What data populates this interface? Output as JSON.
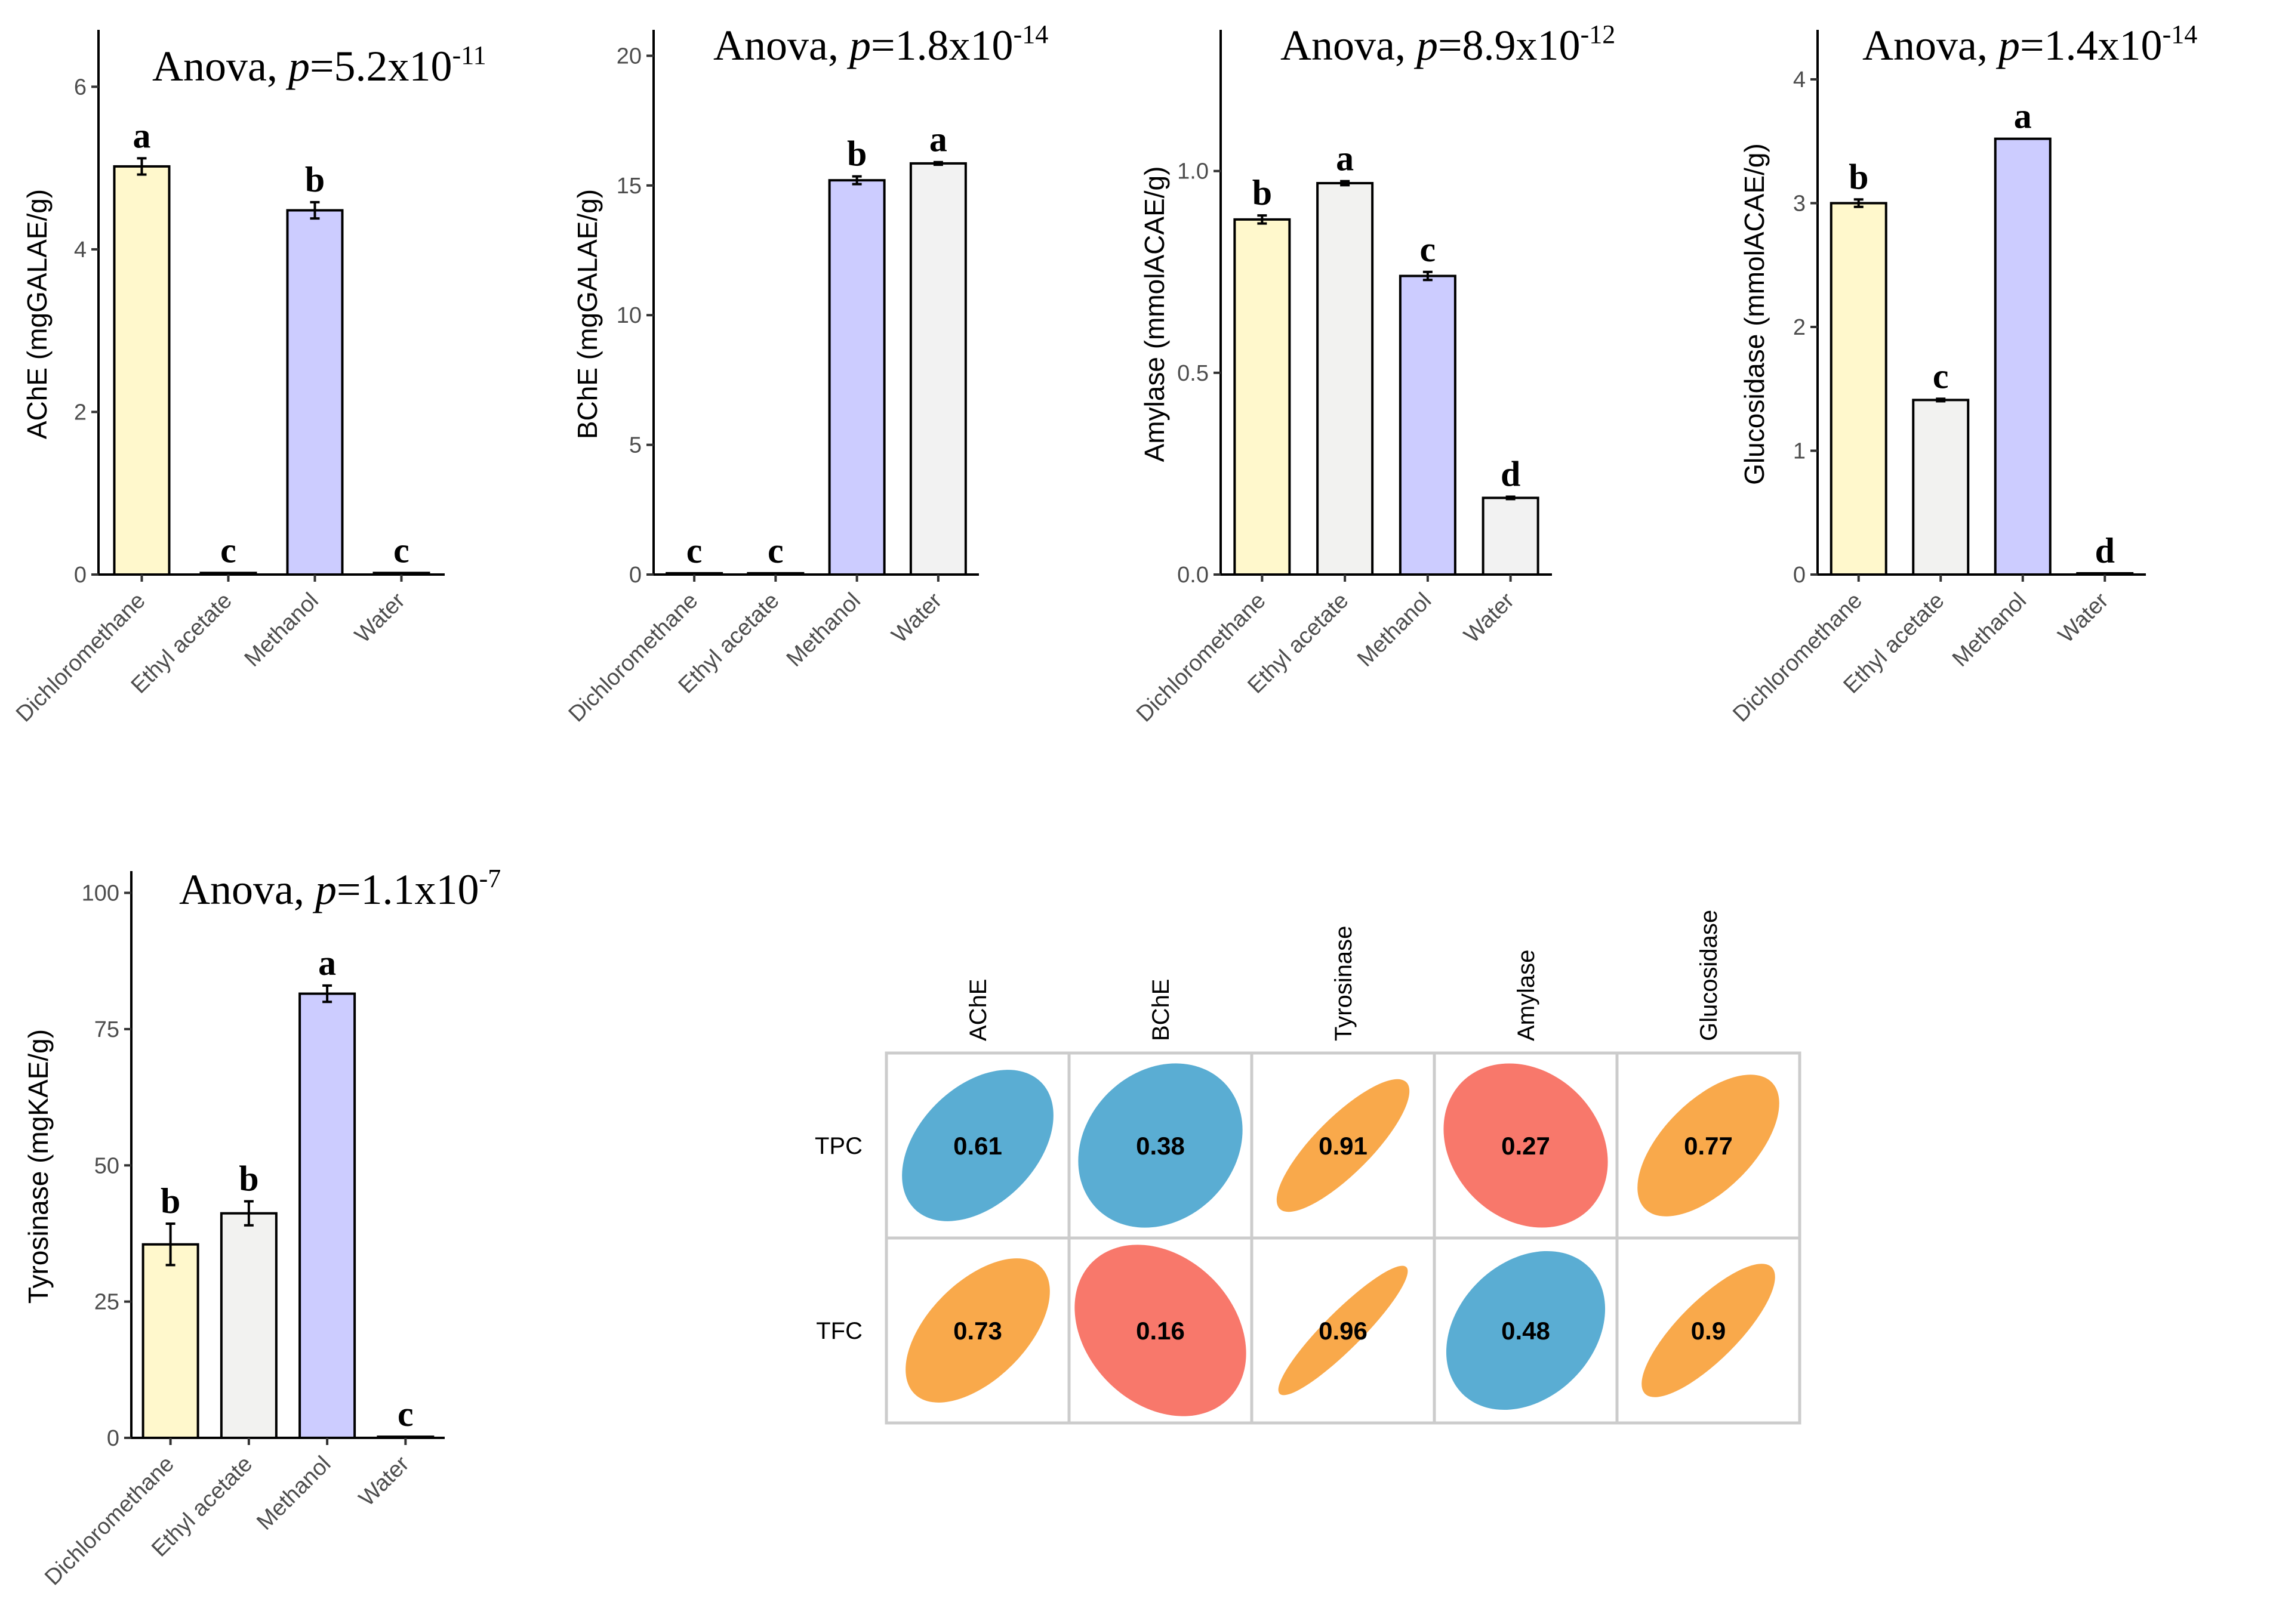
{
  "colors": {
    "bar_fills": [
      "#fff8cc",
      "#f2f2f0",
      "#ccccff",
      "#f2f2f2"
    ],
    "corr_positive_strong": "#f9a94b",
    "corr_mid": "#5aadd3",
    "corr_weak": "#f8786b"
  },
  "chart_data": [
    {
      "type": "bar",
      "title": "Anova, p=5.2x10-11",
      "anova": {
        "prefix": "Anova, ",
        "p": "p",
        "value": "=5.2x10",
        "exp": "-11"
      },
      "categories": [
        "Dichloromethane",
        "Ethyl acetate",
        "Methanol",
        "Water"
      ],
      "values": [
        5.02,
        0.02,
        4.48,
        0.02
      ],
      "errors": [
        0.1,
        0,
        0.1,
        0
      ],
      "letters": [
        "a",
        "c",
        "b",
        "c"
      ],
      "ylabel": "AChE (mgGALAE/g)",
      "ylim": [
        0,
        6.7
      ],
      "yticks": [
        0,
        2,
        4,
        6
      ],
      "ytick_labels": [
        "0",
        "2",
        "4",
        "6"
      ]
    },
    {
      "type": "bar",
      "title": "Anova, p=1.8x10-14",
      "anova": {
        "prefix": "Anova, ",
        "p": "p",
        "value": "=1.8x10",
        "exp": "-14"
      },
      "categories": [
        "Dichloromethane",
        "Ethyl acetate",
        "Methanol",
        "Water"
      ],
      "values": [
        0.05,
        0.05,
        15.2,
        15.85
      ],
      "errors": [
        0,
        0,
        0.15,
        0.05
      ],
      "letters": [
        "c",
        "c",
        "b",
        "a"
      ],
      "ylabel": "BChE (mgGALAE/g)",
      "ylim": [
        0,
        21
      ],
      "yticks": [
        0,
        5,
        10,
        15,
        20
      ],
      "ytick_labels": [
        "0",
        "5",
        "10",
        "15",
        "20"
      ]
    },
    {
      "type": "bar",
      "title": "Anova, p=8.9x10-12",
      "anova": {
        "prefix": "Anova, ",
        "p": "p",
        "value": "=8.9x10",
        "exp": "-12"
      },
      "categories": [
        "Dichloromethane",
        "Ethyl acetate",
        "Methanol",
        "Water"
      ],
      "values": [
        0.88,
        0.97,
        0.74,
        0.19
      ],
      "errors": [
        0.01,
        0.005,
        0.01,
        0.003
      ],
      "letters": [
        "b",
        "a",
        "c",
        "d"
      ],
      "ylabel": "Amylase (mmolACAE/g)",
      "ylim": [
        0,
        1.35
      ],
      "yticks": [
        0,
        0.5,
        1.0
      ],
      "ytick_labels": [
        "0.0",
        "0.5",
        "1.0"
      ]
    },
    {
      "type": "bar",
      "title": "Anova, p=1.4x10-14",
      "anova": {
        "prefix": "Anova, ",
        "p": "p",
        "value": "=1.4x10",
        "exp": "-14"
      },
      "categories": [
        "Dichloromethane",
        "Ethyl acetate",
        "Methanol",
        "Water"
      ],
      "values": [
        3.0,
        1.41,
        3.52,
        0.01
      ],
      "errors": [
        0.03,
        0.01,
        0,
        0
      ],
      "letters": [
        "b",
        "c",
        "a",
        "d"
      ],
      "ylabel": "Glucosidase (mmolACAE/g)",
      "ylim": [
        0,
        4.4
      ],
      "yticks": [
        0,
        1,
        2,
        3,
        4
      ],
      "ytick_labels": [
        "0",
        "1",
        "2",
        "3",
        "4"
      ]
    },
    {
      "type": "bar",
      "title": "Anova, p=1.1x10-7",
      "anova": {
        "prefix": "Anova, ",
        "p": "p",
        "value": "=1.1x10",
        "exp": "-7"
      },
      "categories": [
        "Dichloromethane",
        "Ethyl acetate",
        "Methanol",
        "Water"
      ],
      "values": [
        35.5,
        41.2,
        81.5,
        0.2
      ],
      "errors": [
        3.8,
        2.2,
        1.5,
        0
      ],
      "letters": [
        "b",
        "b",
        "a",
        "c"
      ],
      "ylabel": "Tyrosinase (mgKAE/g)",
      "ylim": [
        0,
        104
      ],
      "yticks": [
        0,
        25,
        50,
        75,
        100
      ],
      "ytick_labels": [
        "0",
        "25",
        "50",
        "75",
        "100"
      ]
    },
    {
      "type": "heatmap",
      "columns": [
        "AChE",
        "BChE",
        "Tyrosinase",
        "Amylase",
        "Glucosidase"
      ],
      "rows": [
        "TPC",
        "TFC"
      ],
      "values": [
        [
          0.61,
          0.38,
          0.91,
          0.27,
          0.77
        ],
        [
          0.73,
          0.16,
          0.96,
          0.48,
          0.9
        ]
      ],
      "labels": [
        [
          "0.61",
          "0.38",
          "0.91",
          "0.27",
          "0.77"
        ],
        [
          "0.73",
          "0.16",
          "0.96",
          "0.48",
          "0.9"
        ]
      ]
    }
  ]
}
